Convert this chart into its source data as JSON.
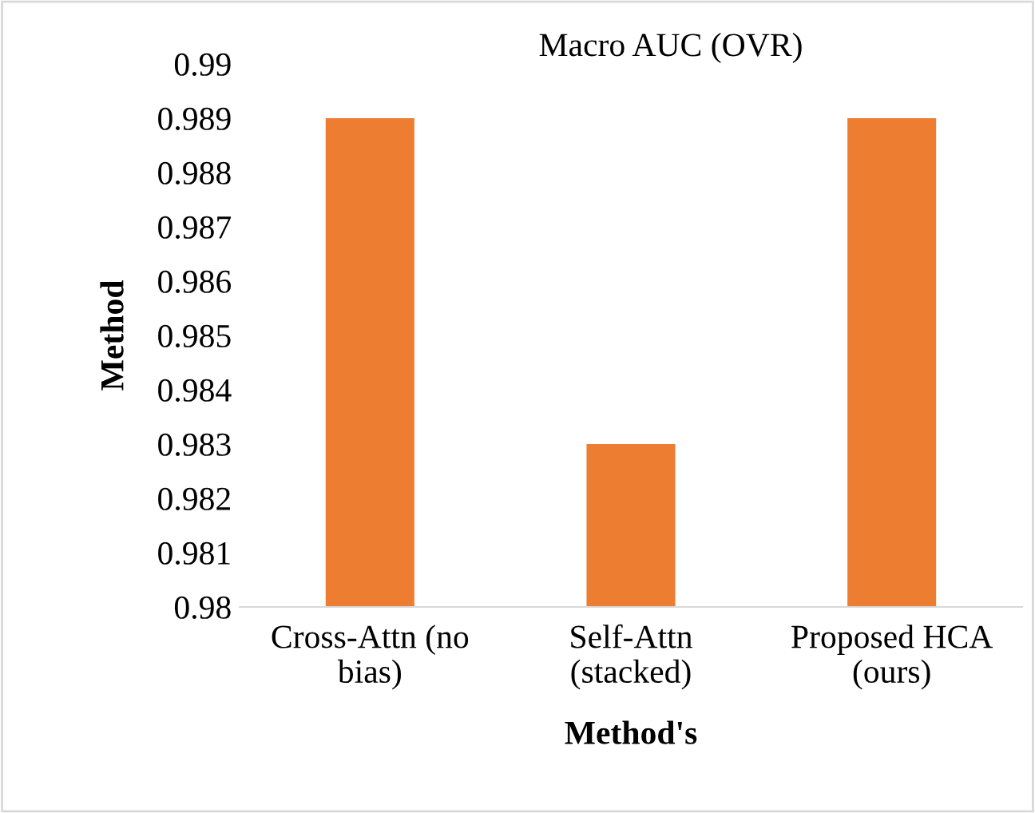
{
  "chart_data": {
    "type": "bar",
    "title": "Macro AUC (OVR)",
    "xlabel": "Method's",
    "ylabel": "Method",
    "categories": [
      "Cross-Attn (no bias)",
      "Self-Attn (stacked)",
      "Proposed HCA (ours)"
    ],
    "values": [
      0.989,
      0.983,
      0.989
    ],
    "color": "#ed7d31",
    "ylim": [
      0.98,
      0.99
    ],
    "yticks": [
      0.98,
      0.981,
      0.982,
      0.983,
      0.984,
      0.985,
      0.986,
      0.987,
      0.988,
      0.989,
      0.99
    ],
    "grid": false
  }
}
